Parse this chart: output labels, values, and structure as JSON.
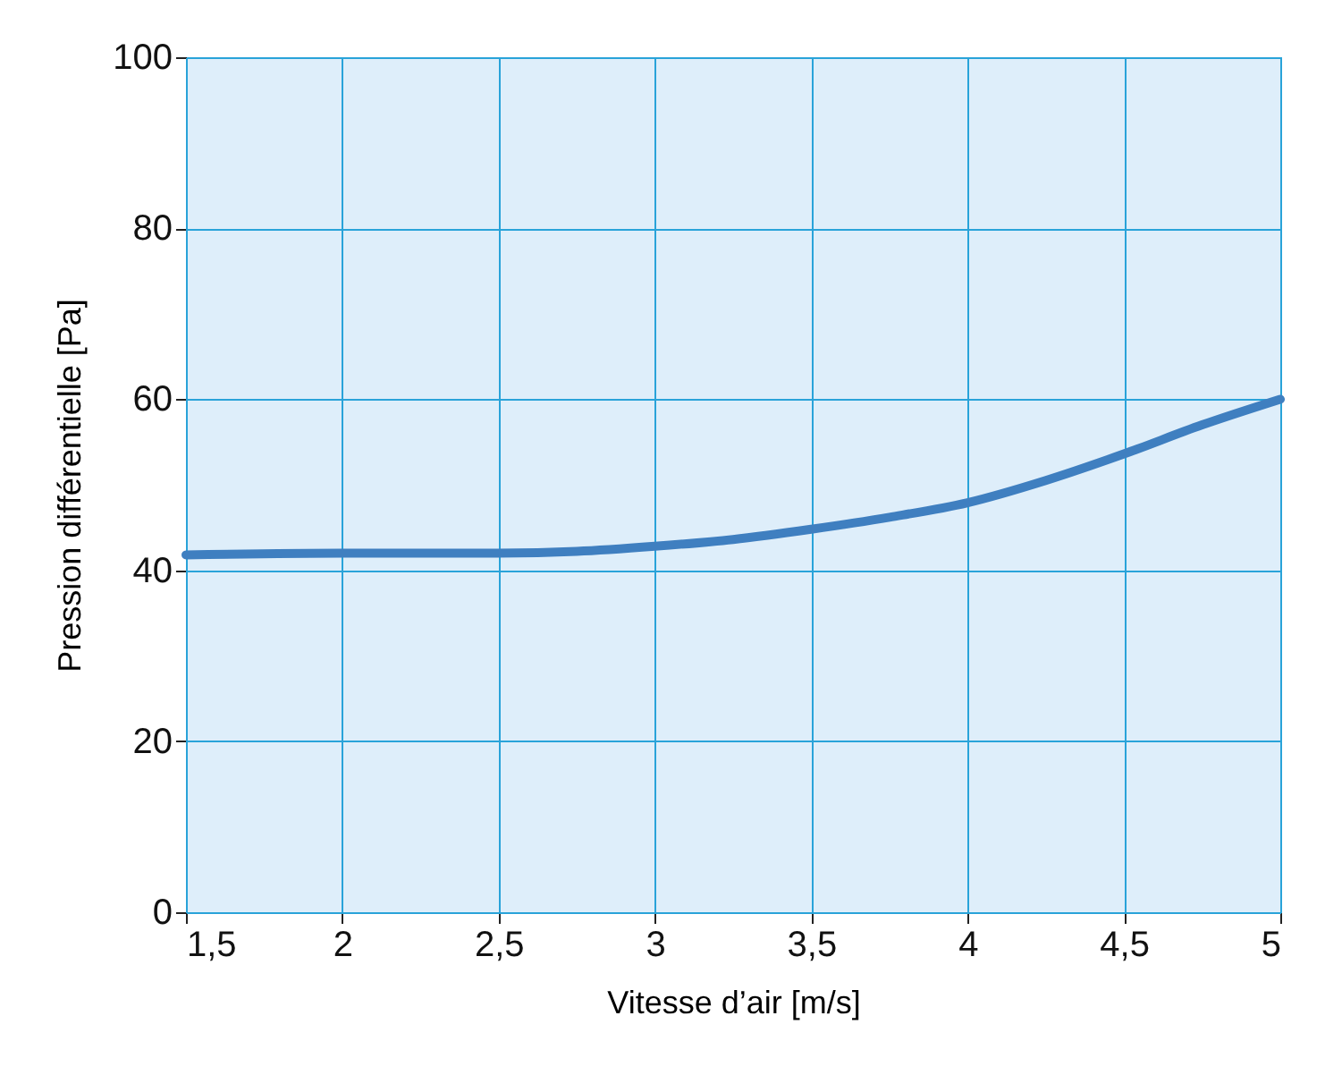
{
  "chart_data": {
    "type": "line",
    "xlabel": "Vitesse d’air [m/s]",
    "ylabel": "Pression différentielle [Pa]",
    "x": [
      1.5,
      2,
      2.5,
      2.75,
      3,
      3.25,
      3.5,
      3.75,
      4,
      4.25,
      4.5,
      4.75,
      5
    ],
    "series": [
      {
        "color": "#3f7fc0",
        "values": [
          41.8,
          42,
          42,
          42.2,
          42.8,
          43.6,
          44.8,
          46.2,
          47.9,
          50.5,
          53.6,
          57,
          60
        ]
      }
    ],
    "xlim": [
      1.5,
      5
    ],
    "xticks": [
      {
        "value": 1.5,
        "label": "1,5"
      },
      2,
      {
        "value": 2.5,
        "label": "2,5"
      },
      3,
      {
        "value": 3.5,
        "label": "3,5"
      },
      4,
      {
        "value": 4.5,
        "label": "4,5"
      },
      5
    ],
    "ylim": [
      0,
      100
    ],
    "yticks": [
      0,
      20,
      40,
      60,
      80,
      100
    ],
    "grid": true,
    "marker": "none",
    "line_style": "solid"
  }
}
